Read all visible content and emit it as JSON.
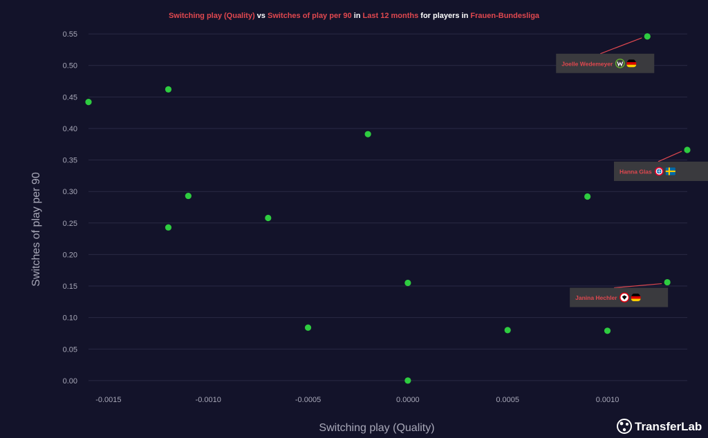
{
  "title": {
    "parts": [
      {
        "text": "Switching play (Quality)",
        "color": "#e0484f"
      },
      {
        "text": " vs ",
        "color": "#ffffff"
      },
      {
        "text": "Switches of play per 90",
        "color": "#e0484f"
      },
      {
        "text": " in ",
        "color": "#ffffff"
      },
      {
        "text": "Last 12 months",
        "color": "#e0484f"
      },
      {
        "text": " for players in ",
        "color": "#ffffff"
      },
      {
        "text": "Frauen-Bundesliga",
        "color": "#e0484f"
      }
    ]
  },
  "brand": {
    "name": "TransferLab",
    "icon": "football-icon"
  },
  "colors": {
    "background": "#13132a",
    "point": "#2ecc40",
    "grid": "#2a2a45",
    "axis_text": "#a8a8b8",
    "label_box": "#3a3a3e",
    "label_text": "#e0484f",
    "leader_line": "#e0484f"
  },
  "chart_data": {
    "type": "scatter",
    "xlabel": "Switching play (Quality)",
    "ylabel": "Switches of play per 90",
    "xlim": [
      -0.0016,
      0.0014
    ],
    "ylim": [
      -0.01,
      0.56
    ],
    "x_ticks": [
      {
        "value": -0.0015,
        "label": "-0.0015"
      },
      {
        "value": -0.001,
        "label": "-0.0010"
      },
      {
        "value": -0.0005,
        "label": "-0.0005"
      },
      {
        "value": 0.0,
        "label": "0.0000"
      },
      {
        "value": 0.0005,
        "label": "0.0005"
      },
      {
        "value": 0.001,
        "label": "0.0010"
      }
    ],
    "y_ticks": [
      {
        "value": 0.0,
        "label": "0.00"
      },
      {
        "value": 0.05,
        "label": "0.05"
      },
      {
        "value": 0.1,
        "label": "0.10"
      },
      {
        "value": 0.15,
        "label": "0.15"
      },
      {
        "value": 0.2,
        "label": "0.20"
      },
      {
        "value": 0.25,
        "label": "0.25"
      },
      {
        "value": 0.3,
        "label": "0.30"
      },
      {
        "value": 0.35,
        "label": "0.35"
      },
      {
        "value": 0.4,
        "label": "0.40"
      },
      {
        "value": 0.45,
        "label": "0.45"
      },
      {
        "value": 0.5,
        "label": "0.50"
      },
      {
        "value": 0.55,
        "label": "0.55"
      }
    ],
    "grid": "horizontal",
    "points": [
      {
        "x": -0.0016,
        "y": 0.442
      },
      {
        "x": -0.0012,
        "y": 0.462
      },
      {
        "x": -0.0011,
        "y": 0.293
      },
      {
        "x": -0.0012,
        "y": 0.243
      },
      {
        "x": -0.0007,
        "y": 0.258
      },
      {
        "x": -0.0005,
        "y": 0.084
      },
      {
        "x": -0.0002,
        "y": 0.391
      },
      {
        "x": 0.0,
        "y": 0.155
      },
      {
        "x": 0.0,
        "y": 0.0
      },
      {
        "x": 0.0005,
        "y": 0.08
      },
      {
        "x": 0.0009,
        "y": 0.292
      },
      {
        "x": 0.001,
        "y": 0.079
      },
      {
        "x": 0.0012,
        "y": 0.546,
        "label": "Joelle Wedemeyer",
        "icons": [
          "wolfsburg-crest-icon",
          "germany-flag-icon"
        ]
      },
      {
        "x": 0.0014,
        "y": 0.366,
        "label": "Hanna Glas",
        "icons": [
          "bayern-crest-icon",
          "sweden-flag-icon"
        ]
      },
      {
        "x": 0.0013,
        "y": 0.156,
        "label": "Janina Hechler",
        "icons": [
          "frankfurt-crest-icon",
          "germany-flag-icon"
        ]
      }
    ]
  }
}
